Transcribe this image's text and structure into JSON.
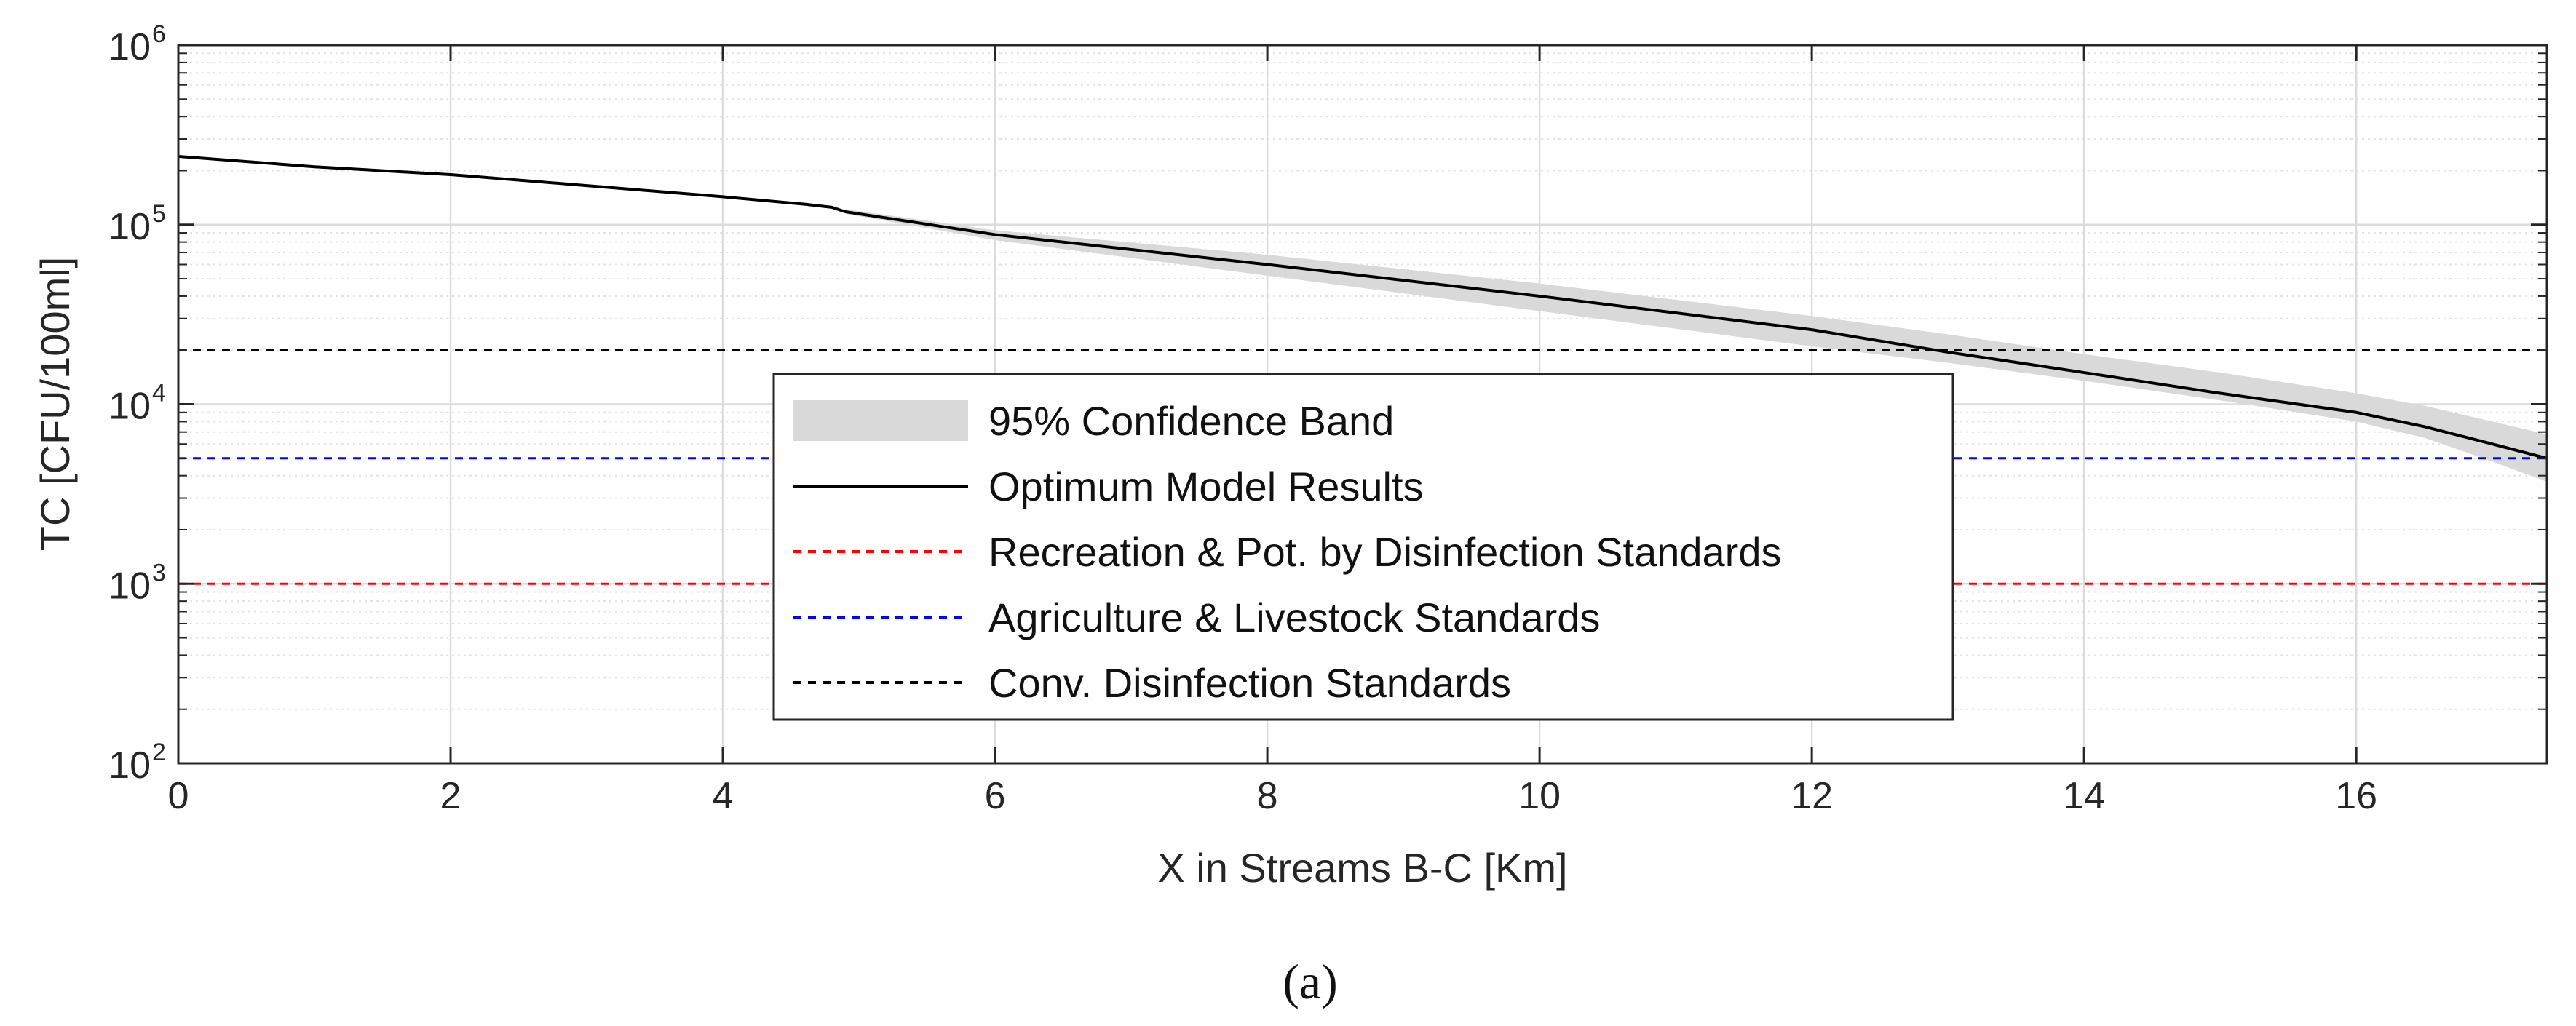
{
  "chart_data": {
    "type": "line",
    "xlabel": "X in Streams B-C [Km]",
    "ylabel": "TC [CFU/100ml]",
    "xlim": [
      0,
      17.4
    ],
    "ylim": [
      100,
      1000000
    ],
    "yscale": "log",
    "grid": true,
    "legend_position": "center",
    "x_ticks": [
      0,
      2,
      4,
      6,
      8,
      10,
      12,
      14,
      16
    ],
    "x_tick_labels": [
      "0",
      "2",
      "4",
      "6",
      "8",
      "10",
      "12",
      "14",
      "16"
    ],
    "y_ticks": [
      {
        "value": 100,
        "base": "10",
        "exp": "2"
      },
      {
        "value": 1000,
        "base": "10",
        "exp": "3"
      },
      {
        "value": 10000,
        "base": "10",
        "exp": "4"
      },
      {
        "value": 100000,
        "base": "10",
        "exp": "5"
      },
      {
        "value": 1000000,
        "base": "10",
        "exp": "6"
      }
    ],
    "series": [
      {
        "name": "Optimum Model Results",
        "color": "#000000",
        "style": "solid",
        "x": [
          0,
          1,
          2,
          3,
          4,
          4.6,
          4.8,
          4.9,
          6,
          8,
          10,
          12,
          13,
          14,
          15,
          16,
          16.5,
          17,
          17.4
        ],
        "y": [
          240000,
          210000,
          190000,
          165000,
          143000,
          130000,
          125000,
          118000,
          88000,
          60000,
          40000,
          26000,
          19500,
          15000,
          11500,
          9000,
          7500,
          6000,
          5000
        ]
      }
    ],
    "confidence_band": {
      "name": "95% Confidence Band",
      "color": "#d9d9d9",
      "x": [
        4.9,
        6,
        8,
        10,
        12,
        13,
        14,
        15,
        16,
        16.5,
        17,
        17.4
      ],
      "lower": [
        115000,
        82000,
        52000,
        33000,
        21000,
        17000,
        13500,
        10500,
        8000,
        6500,
        4800,
        3700
      ],
      "upper": [
        122000,
        93000,
        68000,
        47000,
        31000,
        24500,
        19000,
        15000,
        11500,
        9800,
        8000,
        6800
      ]
    },
    "reference_lines": [
      {
        "name": "Recreation & Pot. by Disinfection Standards",
        "y": 1000,
        "color": "#ff0000",
        "style": "dashed"
      },
      {
        "name": "Agriculture & Livestock Standards",
        "y": 5000,
        "color": "#0000ff",
        "style": "dashed"
      },
      {
        "name": "Conv. Disinfection Standards",
        "y": 20000,
        "color": "#000000",
        "style": "dashed"
      }
    ],
    "legend": [
      "95% Confidence Band",
      "Optimum Model Results",
      "Recreation & Pot. by Disinfection Standards",
      "Agriculture & Livestock Standards",
      "Conv. Disinfection Standards"
    ],
    "caption": "(a)"
  }
}
